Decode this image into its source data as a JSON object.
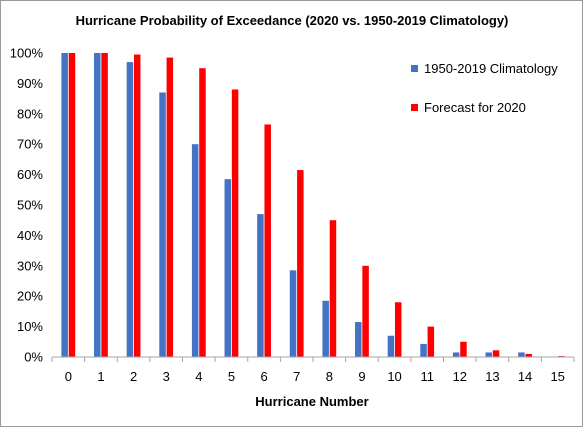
{
  "chart_data": {
    "type": "bar",
    "title": "Hurricane Probability of Exceedance (2020 vs. 1950-2019 Climatology)",
    "xlabel": "Hurricane Number",
    "ylabel": "",
    "categories": [
      "0",
      "1",
      "2",
      "3",
      "4",
      "5",
      "6",
      "7",
      "8",
      "9",
      "10",
      "11",
      "12",
      "13",
      "14",
      "15"
    ],
    "series": [
      {
        "name": "1950-2019 Climatology",
        "color": "#4472c4",
        "values": [
          100,
          100,
          97,
          87,
          70,
          58.5,
          47,
          28.5,
          18.5,
          11.5,
          7,
          4.3,
          1.5,
          1.5,
          1.5,
          0
        ]
      },
      {
        "name": "Forecast for 2020",
        "color": "#ff0000",
        "values": [
          100,
          100,
          99.5,
          98.5,
          95,
          88,
          76.5,
          61.5,
          45,
          30,
          18,
          10,
          5,
          2.2,
          1,
          0.3
        ]
      }
    ],
    "ylim": [
      0,
      100
    ],
    "yticks": [
      "0%",
      "10%",
      "20%",
      "30%",
      "40%",
      "50%",
      "60%",
      "70%",
      "80%",
      "90%",
      "100%"
    ],
    "grid": false,
    "legend": "top-right"
  }
}
